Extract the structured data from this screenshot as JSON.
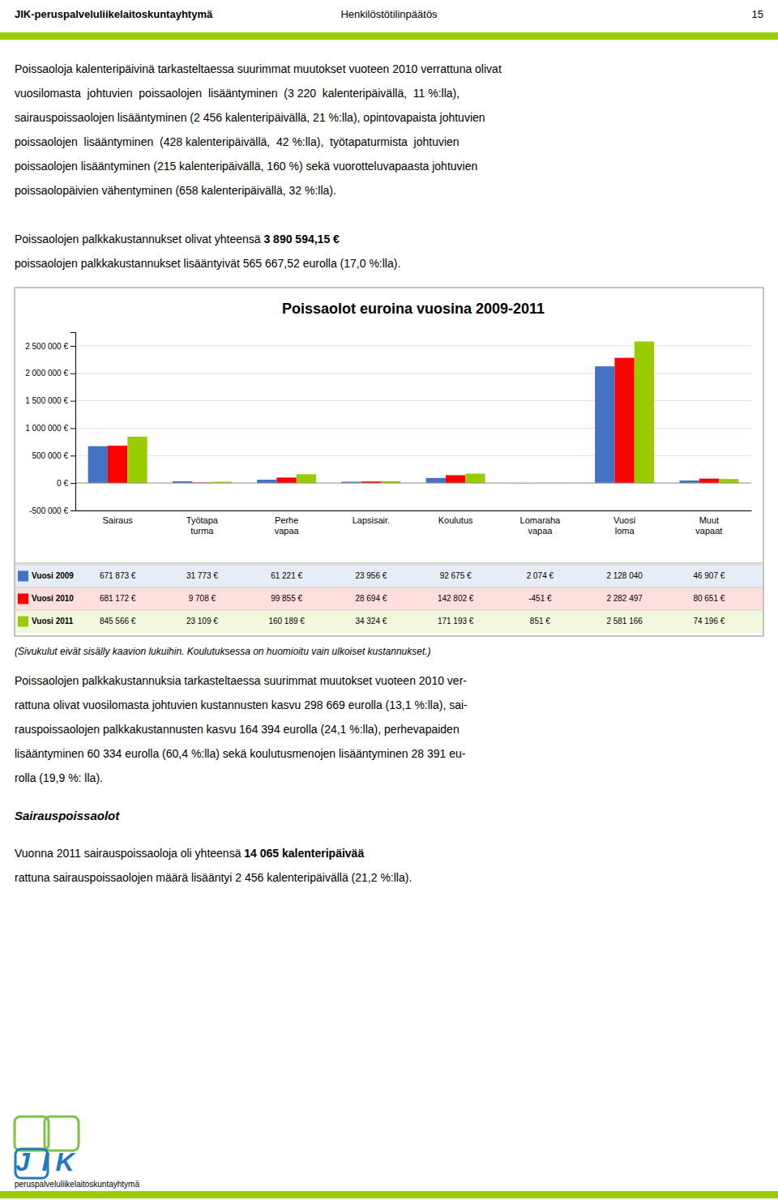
{
  "page": {
    "header_left": "JIK-peruspalveluliikelaitoskuntayhtymä",
    "header_center": "Henkilöstötilinpäätös",
    "header_right": "15",
    "paragraph_1": [
      "Poissaoloja kalenteripäivinä tarkasteltaessa suurimmat muutokset vuoteen 2010 verrattuna olivat",
      "vuosilomasta  johtuvien  poissaolojen  lisääntyminen  (3 220  kalenteripäivällä,  11 %:lla),",
      "sairauspoissaolojen lisääntyminen (2 456 kalenteripäivällä, 21 %:lla), opintovapaista johtuvien",
      "poissaolojen  lisääntyminen  (428 kalenteripäivällä,  42 %:lla),  työtapaturmista  johtuvien",
      "poissaolojen lisääntyminen (215 kalenteripäivällä, 160 %) sekä vuorotteluvapaasta johtuvien",
      "poissaolopäivien vähentyminen (658 kalenteripäivällä, 32 %:lla)."
    ],
    "paragraph_2": {
      "line_1": "Poissaolojen palkkakustannukset olivat yhteensä ",
      "line_1_bold": "3 890 594,15 €",
      "line_2": "poissaolojen palkkakustannukset lisääntyivät 565 667,52 eurolla (17,0 %:lla)."
    },
    "footnote": "(Sivukulut eivät sisälly kaavion lukuihin. Koulutuksessa on huomioitu vain ulkoiset kustannukset.)",
    "paragraph_3": [
      "Poissaolojen palkkakustannuksia tarkasteltaessa suurimmat muutokset vuoteen 2010 ver-",
      "rattuna olivat vuosilomasta johtuvien kustannusten kasvu 298 669 eurolla (13,1 %:lla), sai-",
      "rauspoissaolojen palkkakustannusten kasvu 164 394 eurolla (24,1 %:lla), perhevapaiden",
      "lisääntyminen 60 334 eurolla (60,4 %:lla) sekä koulutusmenojen lisääntyminen 28 391 eu-",
      "rolla (19,9 %: lla)."
    ],
    "section_title": "Sairauspoissaolot",
    "paragraph_4": {
      "line_1": "Vuonna 2011 sairauspoissaoloja oli yhteensä ",
      "line_1_bold": "14 065 kalenteripäivää",
      "line_2": "rattuna sairauspoissaolojen määrä lisääntyi 2 456 kalenteripäivällä (21,2 %:lla)."
    },
    "logo_letters": [
      "J",
      "I",
      "K"
    ],
    "logo_text": "peruspalveluliikelaitoskuntayhtymä"
  },
  "chart_data": {
    "type": "bar",
    "title": "Poissaolot euroina vuosina 2009-2011",
    "categories": [
      "Sairaus",
      "Työtapa\nturma",
      "Perhe\nvapaa",
      "Lapsisair.",
      "Koulutus",
      "Lomaraha\nvapaa",
      "Vuosi\nloma",
      "Muut\nvapaat"
    ],
    "series": [
      {
        "name": "Vuosi 2009",
        "color": "#4472c4",
        "values": [
          671873,
          31773,
          61221,
          23956,
          92675,
          2074,
          2128040,
          46907
        ],
        "value_labels": [
          "671 873 €",
          "31 773 €",
          "61 221 €",
          "23 956 €",
          "92 675 €",
          "2 074 €",
          "2 128 040",
          "46 907 €"
        ]
      },
      {
        "name": "Vuosi 2010",
        "color": "#ff0000",
        "values": [
          681172,
          9708,
          99855,
          28694,
          142802,
          -451,
          2282497,
          80651
        ],
        "value_labels": [
          "681 172 €",
          "9 708 €",
          "99 855 €",
          "28 694 €",
          "142 802 €",
          "-451 €",
          "2 282 497",
          "80 651 €"
        ]
      },
      {
        "name": "Vuosi 2011",
        "color": "#99cc00",
        "values": [
          845566,
          23109,
          160189,
          34324,
          171193,
          851,
          2581166,
          74196
        ],
        "value_labels": [
          "845 566 €",
          "23 109 €",
          "160 189 €",
          "34 324 €",
          "171 193 €",
          "851 €",
          "2 581 166",
          "74 196 €"
        ]
      }
    ],
    "ylim": [
      -500000,
      2750000
    ],
    "yticks": [
      {
        "value": -500000,
        "label": "-500 000 €"
      },
      {
        "value": 0,
        "label": "0 €"
      },
      {
        "value": 500000,
        "label": "500 000 €"
      },
      {
        "value": 1000000,
        "label": "1 000 000 €"
      },
      {
        "value": 1500000,
        "label": "1 500 000 €"
      },
      {
        "value": 2000000,
        "label": "2 000 000 €"
      },
      {
        "value": 2500000,
        "label": "2 500 000 €"
      }
    ],
    "grid": true
  }
}
